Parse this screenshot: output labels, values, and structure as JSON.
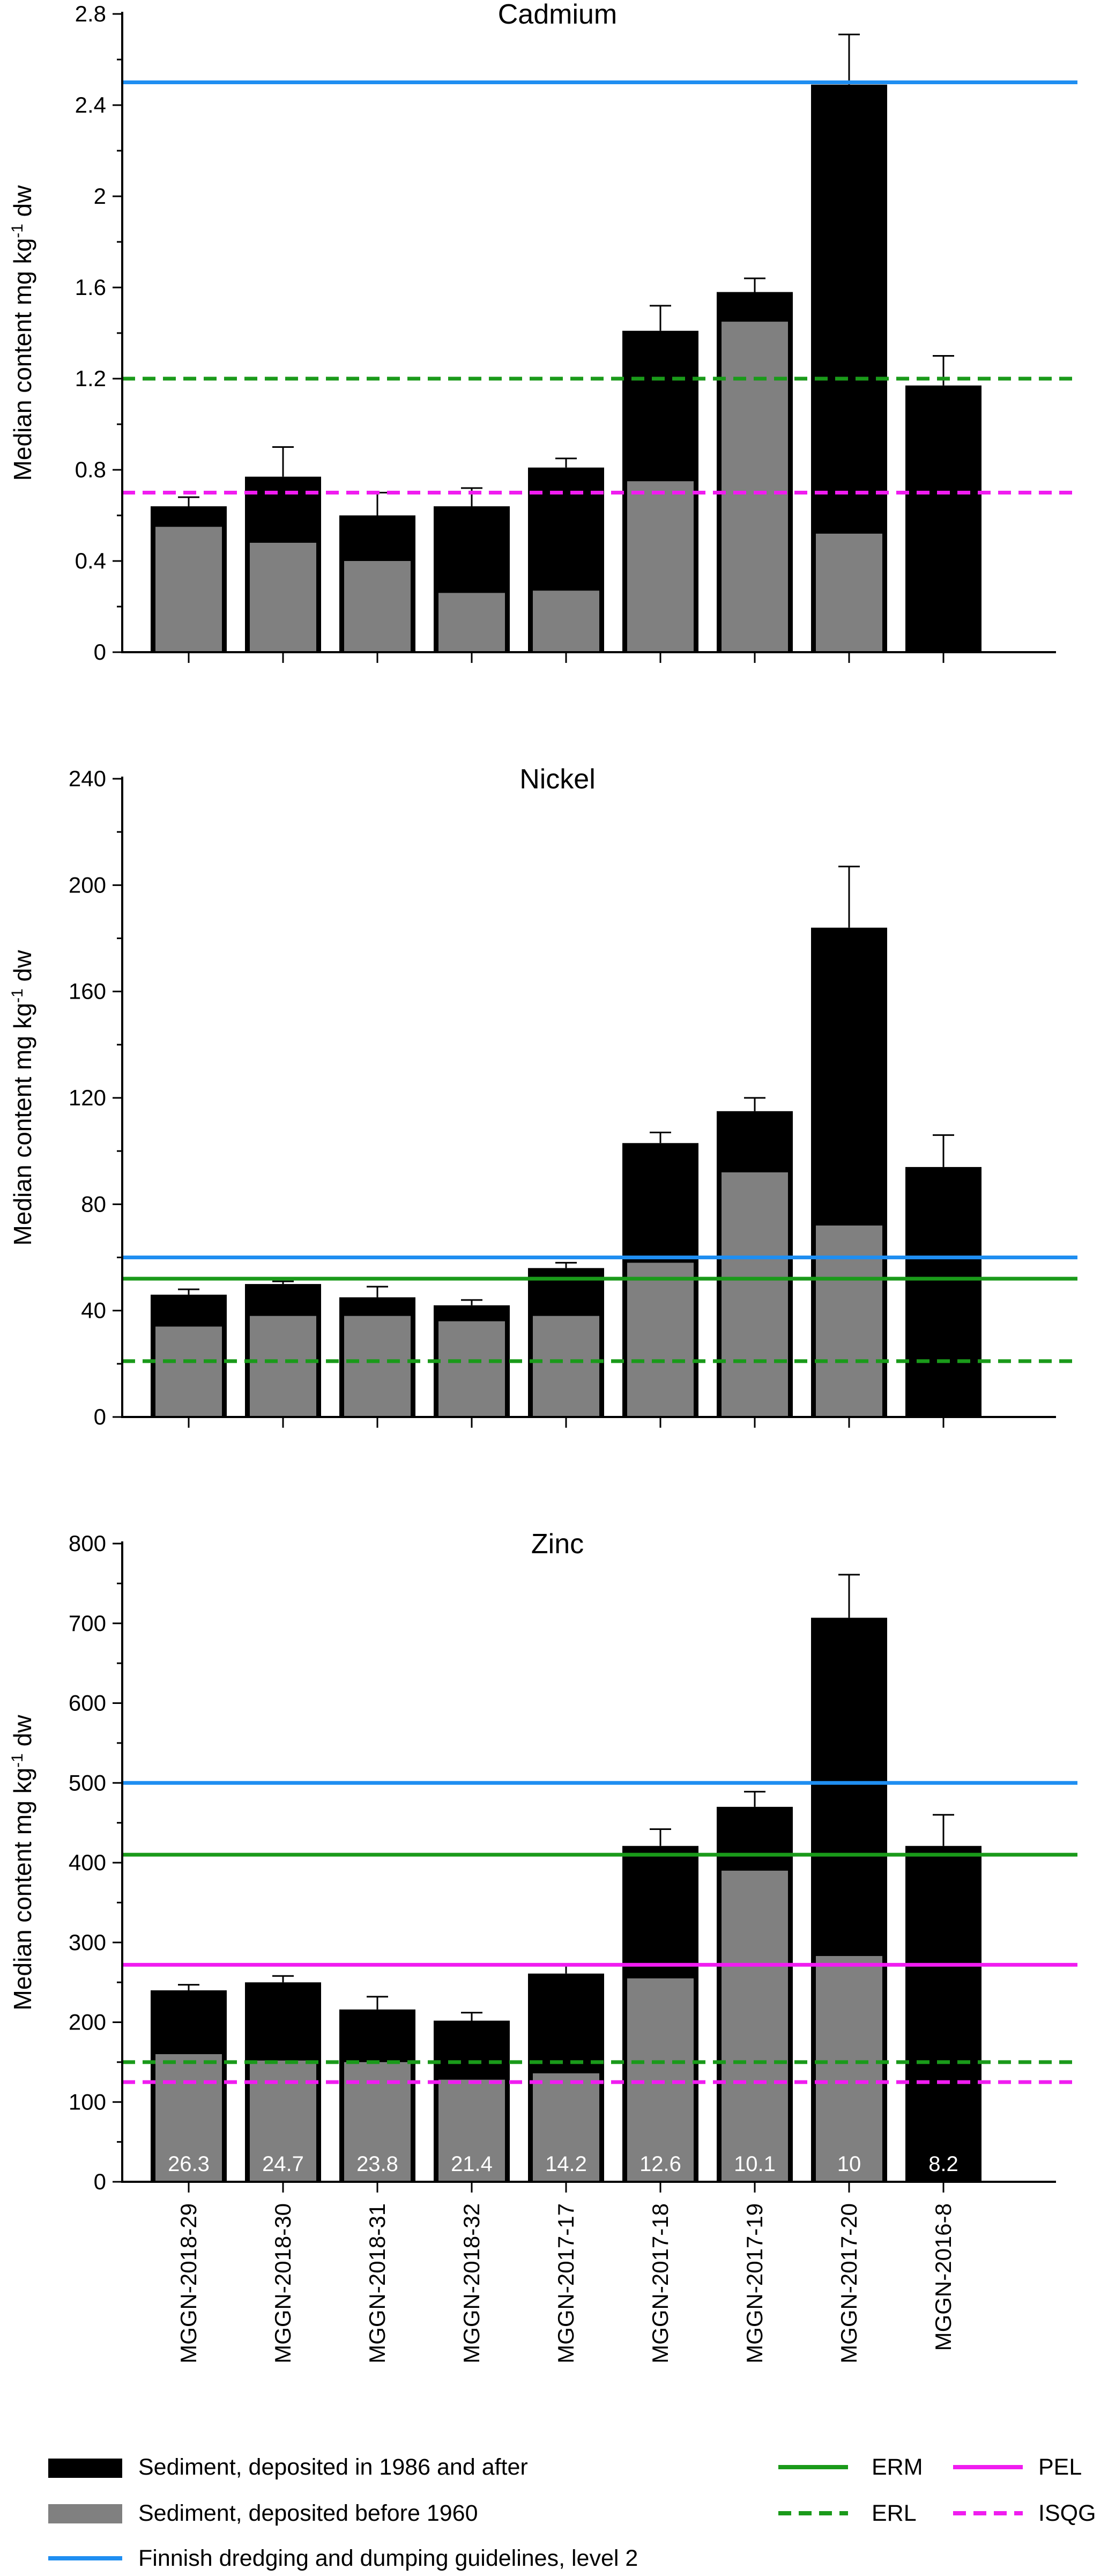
{
  "colors": {
    "after1986": "#000000",
    "before1960": "#808080",
    "finnish": "#1f8ef1",
    "erm_erl": "#1a9a1a",
    "pel_isqg": "#f01cf0"
  },
  "chart_data": [
    {
      "type": "bar",
      "title": "Cadmium",
      "ylabel_main": "Median content mg kg",
      "ylabel_sup": "-1",
      "ylabel_tail": " dw",
      "ylim": [
        0,
        2.8
      ],
      "ticks": [
        "0",
        "0.4",
        "0.8",
        "1.2",
        "1.6",
        "2",
        "2.4",
        "2.8"
      ],
      "categories": [
        "MGGN-2018-29",
        "MGGN-2018-30",
        "MGGN-2018-31",
        "MGGN-2018-32",
        "MGGN-2017-17",
        "MGGN-2017-18",
        "MGGN-2017-19",
        "MGGN-2017-20",
        "MGGN-2016-8"
      ],
      "series": [
        {
          "key": "after1986",
          "values": [
            0.64,
            0.77,
            0.6,
            0.64,
            0.81,
            1.41,
            1.58,
            2.49,
            1.17
          ]
        },
        {
          "key": "before1960",
          "values": [
            0.55,
            0.48,
            0.4,
            0.26,
            0.27,
            0.75,
            1.45,
            0.52,
            null
          ]
        }
      ],
      "error": [
        0.68,
        0.9,
        0.7,
        0.72,
        0.85,
        1.52,
        1.64,
        2.71,
        1.3
      ],
      "refs": [
        {
          "key": "finnish",
          "value": 2.5,
          "style": "solid"
        },
        {
          "key": "erl",
          "value": 1.2,
          "style": "dashed"
        },
        {
          "key": "isqg",
          "value": 0.7,
          "style": "dashed"
        }
      ]
    },
    {
      "type": "bar",
      "title": "Nickel",
      "ylabel_main": "Median content mg kg",
      "ylabel_sup": "-1",
      "ylabel_tail": " dw",
      "ylim": [
        0,
        240
      ],
      "ticks": [
        "0",
        "40",
        "80",
        "120",
        "160",
        "200",
        "240"
      ],
      "categories": [
        "MGGN-2018-29",
        "MGGN-2018-30",
        "MGGN-2018-31",
        "MGGN-2018-32",
        "MGGN-2017-17",
        "MGGN-2017-18",
        "MGGN-2017-19",
        "MGGN-2017-20",
        "MGGN-2016-8"
      ],
      "series": [
        {
          "key": "after1986",
          "values": [
            46,
            50,
            45,
            42,
            56,
            103,
            115,
            184,
            94
          ]
        },
        {
          "key": "before1960",
          "values": [
            34,
            38,
            38,
            36,
            38,
            58,
            92,
            72,
            null
          ]
        }
      ],
      "error": [
        48,
        51,
        49,
        44,
        58,
        107,
        120,
        207,
        106
      ],
      "refs": [
        {
          "key": "finnish",
          "value": 60,
          "style": "solid"
        },
        {
          "key": "erm",
          "value": 52,
          "style": "solid"
        },
        {
          "key": "erl",
          "value": 21,
          "style": "dashed"
        }
      ]
    },
    {
      "type": "bar",
      "title": "Zinc",
      "ylabel_main": "Median content mg kg",
      "ylabel_sup": "-1",
      "ylabel_tail": " dw",
      "ylim": [
        0,
        800
      ],
      "ticks": [
        "0",
        "100",
        "200",
        "300",
        "400",
        "500",
        "600",
        "700",
        "800"
      ],
      "categories": [
        "MGGN-2018-29",
        "MGGN-2018-30",
        "MGGN-2018-31",
        "MGGN-2018-32",
        "MGGN-2017-17",
        "MGGN-2017-18",
        "MGGN-2017-19",
        "MGGN-2017-20",
        "MGGN-2016-8"
      ],
      "series": [
        {
          "key": "after1986",
          "values": [
            240,
            250,
            216,
            202,
            261,
            421,
            470,
            707,
            421
          ]
        },
        {
          "key": "before1960",
          "values": [
            160,
            152,
            150,
            128,
            136,
            255,
            390,
            283,
            null
          ]
        }
      ],
      "error": [
        247,
        258,
        232,
        212,
        272,
        442,
        489,
        761,
        460
      ],
      "bar_labels": [
        "26.3",
        "24.7",
        "23.8",
        "21.4",
        "14.2",
        "12.6",
        "10.1",
        "10",
        "8.2"
      ],
      "refs": [
        {
          "key": "finnish",
          "value": 500,
          "style": "solid"
        },
        {
          "key": "erm",
          "value": 410,
          "style": "solid"
        },
        {
          "key": "pel",
          "value": 272,
          "style": "solid"
        },
        {
          "key": "erl",
          "value": 150,
          "style": "dashed"
        },
        {
          "key": "isqg",
          "value": 125,
          "style": "dashed"
        }
      ]
    }
  ],
  "legend": {
    "after1986": "Sediment, deposited in 1986 and after",
    "before1960": "Sediment, deposited before 1960",
    "finnish": "Finnish dredging and dumping guidelines, level 2",
    "erm": "ERM",
    "erl": "ERL",
    "pel": "PEL",
    "isqg": "ISQG"
  }
}
